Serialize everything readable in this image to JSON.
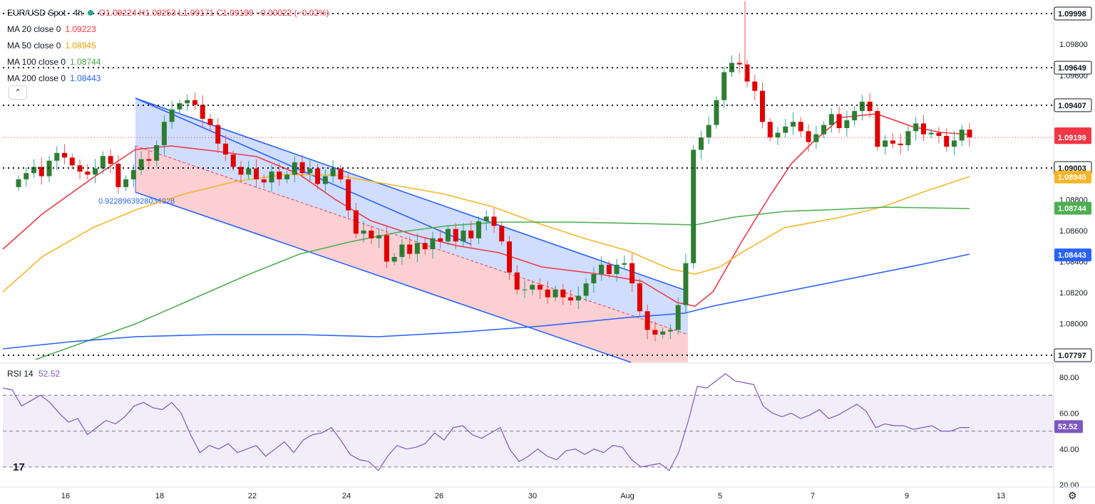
{
  "header": {
    "symbol": "EUR/USD Spot · 4h",
    "ohlc": "O1.09224 H1.09253 L1.09171 C1.09199 −0.00022 (−0.02%)"
  },
  "indicators": [
    {
      "label": "MA 20 close 0",
      "value": "1.09223",
      "color": "#f23645"
    },
    {
      "label": "MA 50 close 0",
      "value": "1.08945",
      "color": "#f7b626"
    },
    {
      "label": "MA 100 close 0",
      "value": "1.08744",
      "color": "#4caf50"
    },
    {
      "label": "MA 200 close 0",
      "value": "1.08443",
      "color": "#2962ff"
    }
  ],
  "collapse_icon": "chevron-up-icon",
  "rsi": {
    "label": "RSI 14",
    "value": "52.52",
    "color": "#7e57c2"
  },
  "channel_label": "0.9228963928034628",
  "chart_data": {
    "type": "candlestick",
    "price_axis": {
      "ticks": [
        "1.07800",
        "1.08000",
        "1.08200",
        "1.08400",
        "1.08600",
        "1.08800",
        "1.09000",
        "1.09200",
        "1.09400",
        "1.09600",
        "1.09800"
      ],
      "range": [
        1.078,
        1.1
      ]
    },
    "time_axis": {
      "ticks": [
        "16",
        "18",
        "22",
        "24",
        "26",
        "30",
        "Aug",
        "5",
        "7",
        "9",
        "13"
      ]
    },
    "rsi_axis": {
      "ticks": [
        "20.00",
        "40.00",
        "60.00",
        "80.00"
      ],
      "range": [
        20,
        80
      ]
    },
    "horizontal_levels": [
      "1.09998",
      "1.09649",
      "1.09407",
      "1.09003",
      "1.07797"
    ],
    "badges": [
      {
        "text": "1.09223",
        "price": 1.09223,
        "color": "#f23645"
      },
      {
        "text": "1.09199",
        "price": 1.09199,
        "color": "#f23645"
      },
      {
        "text": "1.08945",
        "price": 1.08945,
        "color": "#f7b626"
      },
      {
        "text": "1.08744",
        "price": 1.08744,
        "color": "#4caf50"
      },
      {
        "text": "1.08443",
        "price": 1.08443,
        "color": "#2962ff"
      },
      {
        "text": "52.52",
        "price": 52.52,
        "color": "#7e57c2",
        "pane": "rsi"
      }
    ],
    "colors": {
      "up": "#26a69a",
      "down": "#ef5350",
      "up_body": "#2e7d32",
      "down_body": "#e00000"
    },
    "candles_close": [
      1.0893,
      1.0897,
      1.0901,
      1.0895,
      1.0905,
      1.091,
      1.0907,
      1.0902,
      1.0898,
      1.0896,
      1.09,
      1.0908,
      1.0903,
      1.0888,
      1.0893,
      1.0899,
      1.0906,
      1.0905,
      1.0915,
      1.093,
      1.0938,
      1.0942,
      1.0944,
      1.0941,
      1.0932,
      1.0928,
      1.0916,
      1.0909,
      1.0901,
      1.0896,
      1.09,
      1.0893,
      1.0891,
      1.0898,
      1.0893,
      1.0896,
      1.0904,
      1.0897,
      1.09,
      1.089,
      1.0895,
      1.09,
      1.0893,
      1.0873,
      1.0858,
      1.086,
      1.0855,
      1.0857,
      1.084,
      1.0843,
      1.0851,
      1.0845,
      1.0852,
      1.0848,
      1.0855,
      1.0853,
      1.0861,
      1.0853,
      1.086,
      1.0855,
      1.0866,
      1.0869,
      1.0863,
      1.0853,
      1.0833,
      1.0822,
      1.0822,
      1.0825,
      1.0822,
      1.0817,
      1.0822,
      1.0817,
      1.0815,
      1.0818,
      1.0826,
      1.0832,
      1.0838,
      1.0832,
      1.0838,
      1.0839,
      1.0826,
      1.0808,
      1.0796,
      1.0793,
      1.0795,
      1.0796,
      1.0812,
      1.0839,
      1.0912,
      1.092,
      1.0928,
      1.0944,
      1.0962,
      1.0968,
      1.0967,
      1.0956,
      1.095,
      1.093,
      1.092,
      1.0923,
      1.0927,
      1.093,
      1.0924,
      1.0917,
      1.0922,
      1.0928,
      1.0935,
      1.0926,
      1.0931,
      1.0937,
      1.0943,
      1.0937,
      1.0914,
      1.0918,
      1.0916,
      1.0915,
      1.0924,
      1.0929,
      1.0922,
      1.0923,
      1.0921,
      1.0914,
      1.0918,
      1.0925,
      1.092
    ]
  }
}
